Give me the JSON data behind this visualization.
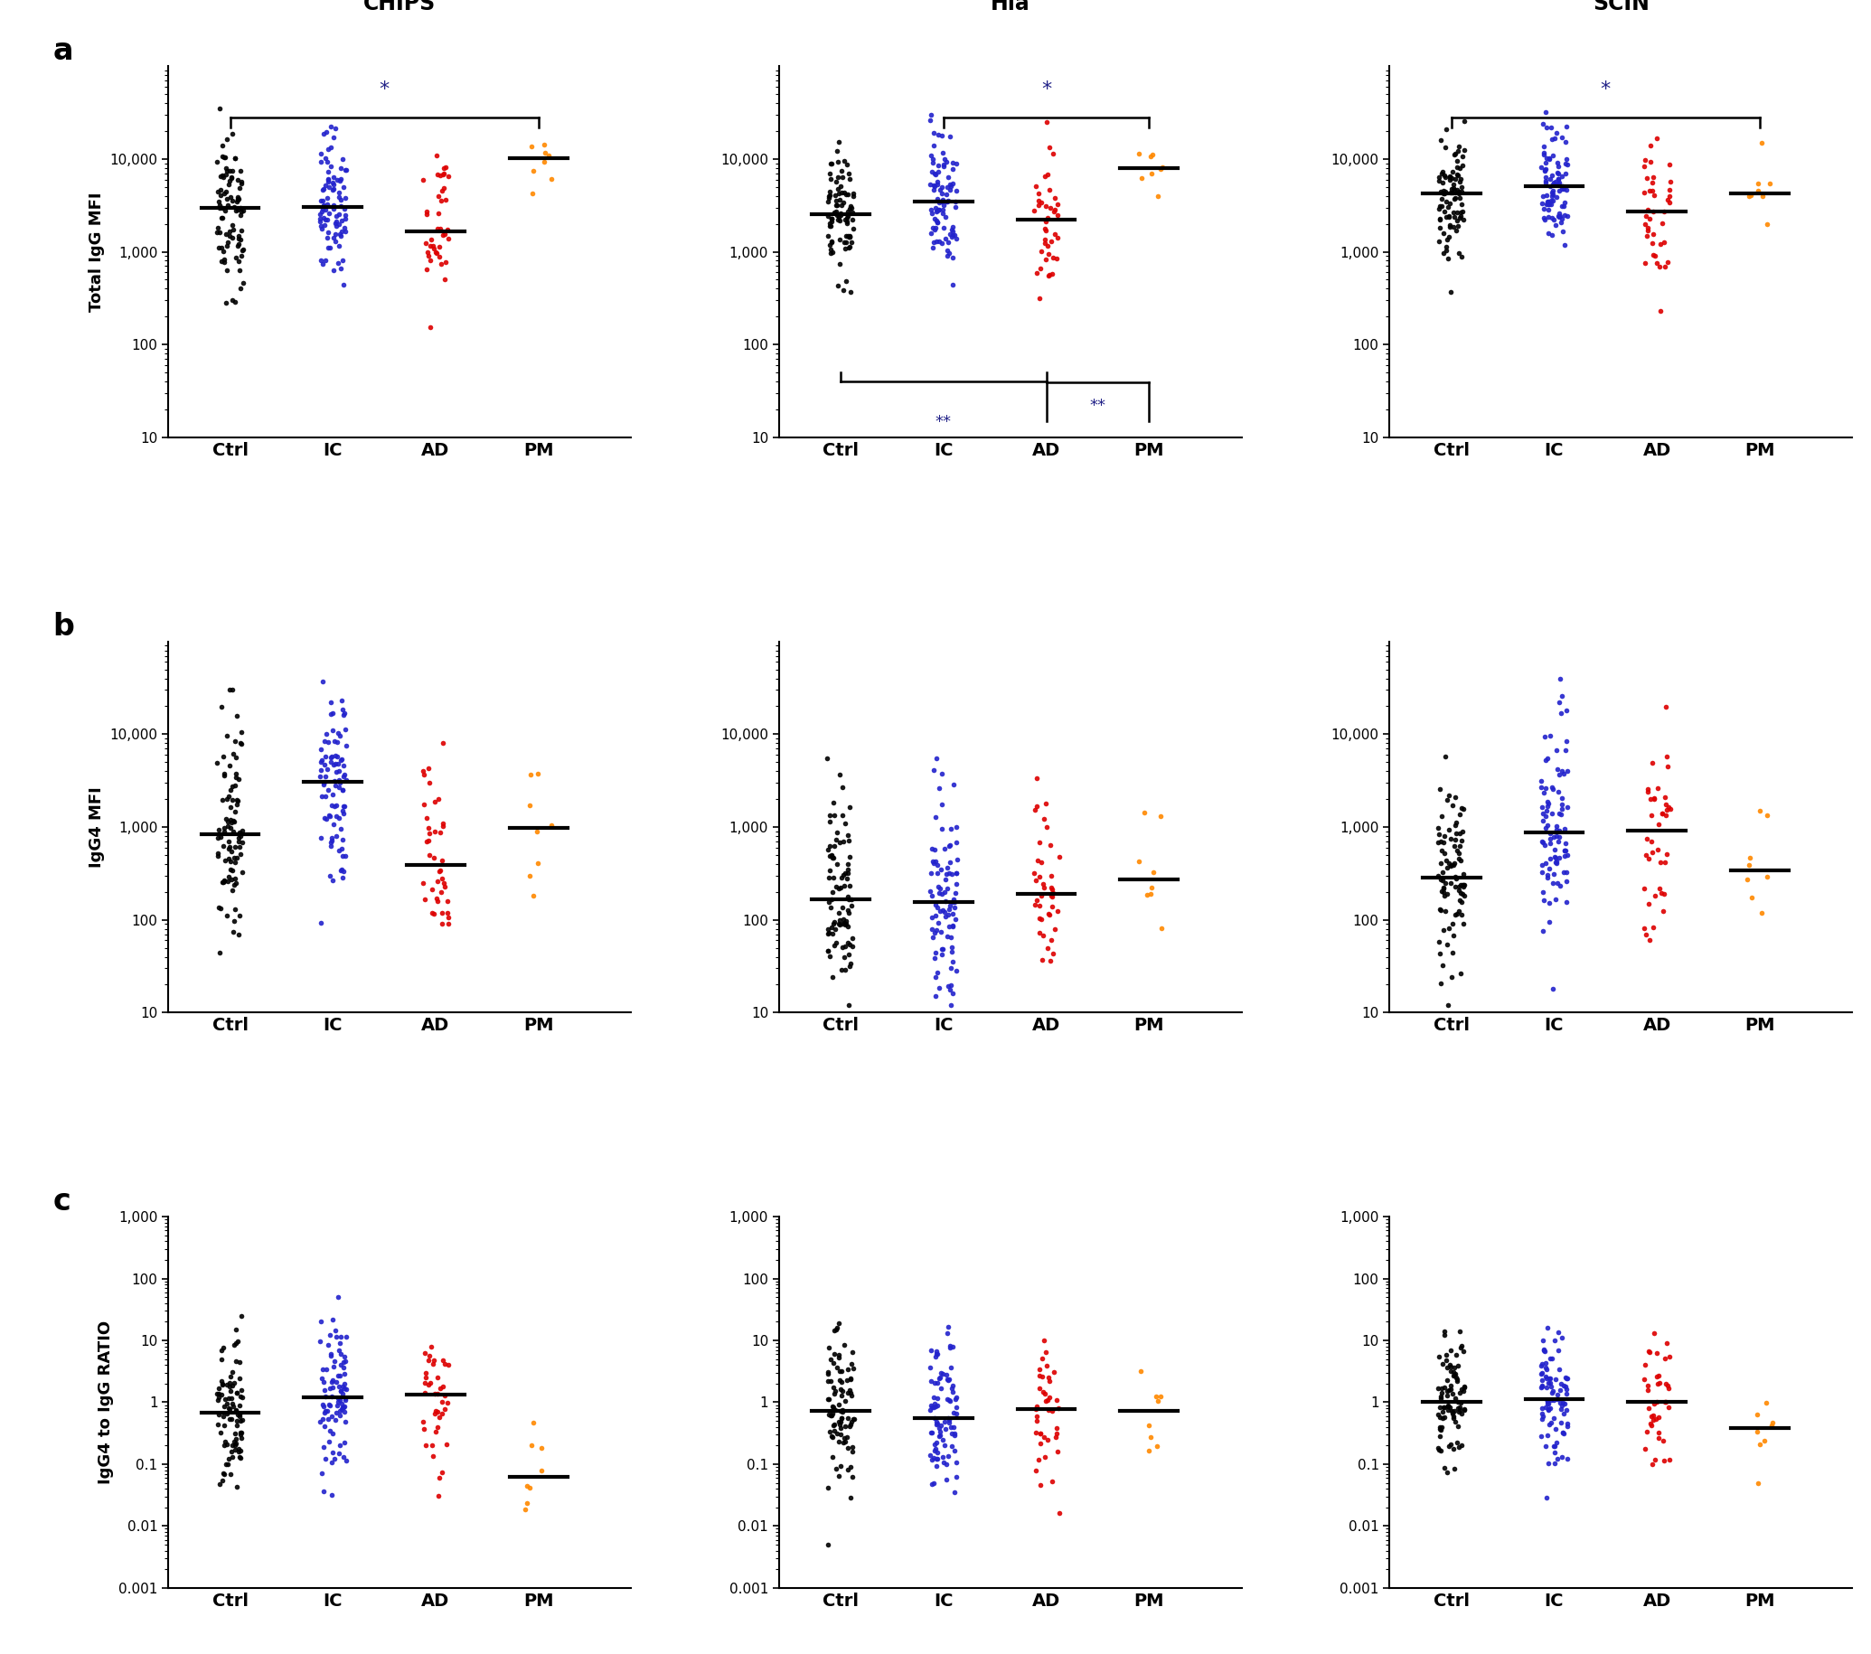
{
  "panel_titles_row1": [
    "CHIPS",
    "Hla",
    "SCIN"
  ],
  "row_labels": [
    "a",
    "b",
    "c"
  ],
  "group_labels": [
    "Ctrl",
    "IC",
    "AD",
    "PM"
  ],
  "group_colors": [
    "#000000",
    "#2222cc",
    "#dd0000",
    "#ff8800"
  ],
  "ylabel_row1": "Total IgG MFI",
  "ylabel_row2": "IgG4 MFI",
  "ylabel_row3": "IgG4 to IgG RATIO",
  "ylim_row1": [
    10,
    100000
  ],
  "ylim_row2": [
    10,
    100000
  ],
  "ylim_row3": [
    0.001,
    1000
  ],
  "yticks_row1": [
    10,
    100,
    1000,
    10000
  ],
  "yticks_row2": [
    10,
    100,
    1000,
    10000
  ],
  "yticks_row3": [
    0.001,
    0.01,
    0.1,
    1,
    10,
    100,
    1000
  ],
  "ytick_labels_row1": [
    "10",
    "100",
    "1,000",
    "10,000"
  ],
  "ytick_labels_row2": [
    "10",
    "100",
    "1,000",
    "10,000"
  ],
  "ytick_labels_row3": [
    "0.001",
    "0.01",
    "0.1",
    "1",
    "10",
    "100",
    "1,000"
  ],
  "n_ctrl": 90,
  "n_ic": 90,
  "n_ad": 40,
  "n_pm": 8,
  "dot_size": 16
}
